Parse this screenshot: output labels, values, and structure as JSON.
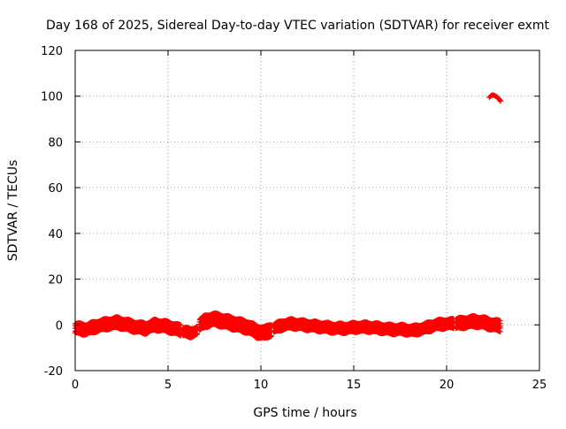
{
  "chart_data": {
    "type": "scatter",
    "title": "Day 168 of 2025, Sidereal Day-to-day VTEC variation (SDTVAR) for receiver exmt",
    "xlabel": "GPS time / hours",
    "ylabel": "SDTVAR / TECUs",
    "xlim": [
      0,
      25
    ],
    "ylim": [
      -20,
      120
    ],
    "xticks": [
      0,
      5,
      10,
      15,
      20,
      25
    ],
    "yticks": [
      -20,
      0,
      20,
      40,
      60,
      80,
      100,
      120
    ],
    "grid": true,
    "marker": "+",
    "color": "#ff0000",
    "band_segments": [
      {
        "x": [
          0.0,
          0.6,
          1.2,
          1.8,
          2.3,
          2.8,
          3.3,
          3.8,
          4.3,
          4.8,
          5.3,
          5.7
        ],
        "center": [
          -1.5,
          -2.0,
          -0.5,
          0.5,
          1.0,
          0.0,
          -1.0,
          -1.5,
          0.0,
          -0.5,
          -1.5,
          -2.5
        ],
        "halfwidth": 2.2
      },
      {
        "x": [
          5.8,
          6.2,
          6.6
        ],
        "center": [
          -3.0,
          -3.5,
          -2.5
        ],
        "halfwidth": 1.8
      },
      {
        "x": [
          6.7,
          7.0,
          7.4,
          7.8,
          8.3,
          8.8,
          9.3,
          9.8,
          10.2,
          10.6
        ],
        "center": [
          0.0,
          1.5,
          2.5,
          2.0,
          1.0,
          0.0,
          -1.0,
          -3.0,
          -3.5,
          -2.0
        ],
        "halfwidth": 2.5
      },
      {
        "x": [
          10.7,
          11.2,
          11.7,
          12.2,
          12.8,
          13.4,
          14.0,
          14.6,
          15.2,
          15.8,
          16.4,
          17.0,
          17.6,
          18.2,
          18.8,
          19.4,
          20.0,
          20.4
        ],
        "center": [
          -1.5,
          0.0,
          0.5,
          0.0,
          -0.5,
          -1.0,
          -1.5,
          -1.5,
          -1.0,
          -1.0,
          -1.5,
          -2.0,
          -2.0,
          -2.5,
          -1.5,
          0.0,
          0.5,
          0.5
        ],
        "halfwidth": 1.9
      },
      {
        "x": [
          20.5,
          21.0,
          21.5,
          22.0,
          22.5,
          22.9
        ],
        "center": [
          0.5,
          1.0,
          1.5,
          1.0,
          0.0,
          -0.5
        ],
        "halfwidth": 2.2
      }
    ],
    "outlier_series": {
      "x": [
        22.3,
        22.4,
        22.5,
        22.6,
        22.7,
        22.8,
        22.85,
        22.9
      ],
      "y": [
        99.5,
        100.3,
        100.5,
        100.2,
        99.7,
        99.0,
        98.4,
        97.8
      ]
    }
  }
}
